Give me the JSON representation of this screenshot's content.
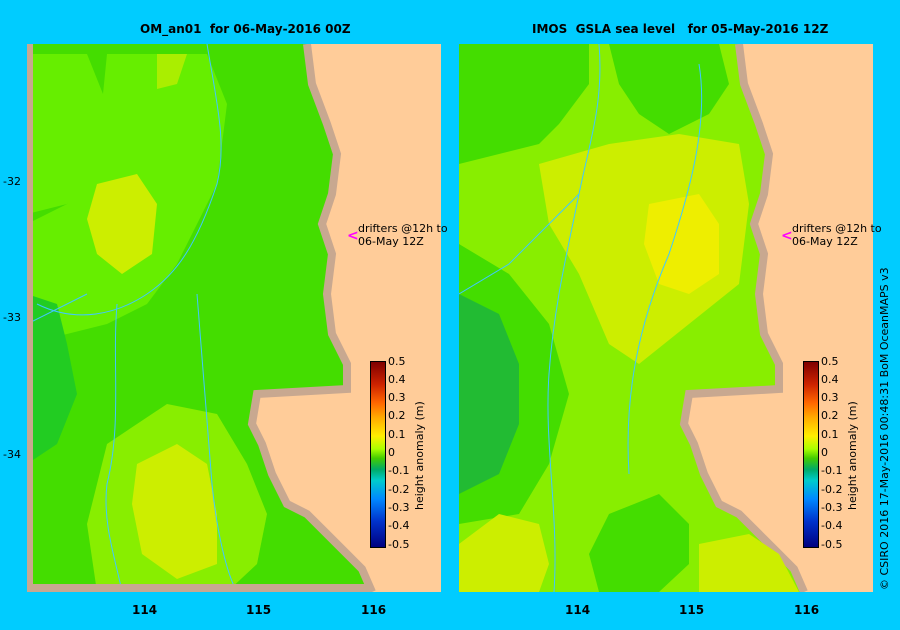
{
  "left_panel": {
    "title": "OM_an01  for 06-May-2016 00Z",
    "drifter_label_1": "drifters @12h to",
    "drifter_label_2": "06-May 12Z"
  },
  "right_panel": {
    "title": "IMOS  GSLA sea level   for 05-May-2016 12Z",
    "drifter_label_1": "drifters @12h to",
    "drifter_label_2": "06-May 12Z"
  },
  "axes": {
    "lat_ticks": [
      "-32",
      "-33",
      "-34"
    ],
    "lon_ticks": [
      "114",
      "115",
      "116"
    ]
  },
  "colorbar": {
    "title": "height anomaly (m)",
    "ticks": [
      "0.5",
      "0.4",
      "0.3",
      "0.2",
      "0.1",
      "0",
      "-0.1",
      "-0.2",
      "-0.3",
      "-0.4",
      "-0.5"
    ]
  },
  "credit": "© CSIRO 2016   17-May-2016 00:48:31 BoM OceanMAPS v3",
  "colors": {
    "background": "#00ccff",
    "land": "#ffcc99",
    "coast": "#c8a890",
    "drifter_arrow": "#ff00ff",
    "contour_line": "#40c8ff"
  }
}
